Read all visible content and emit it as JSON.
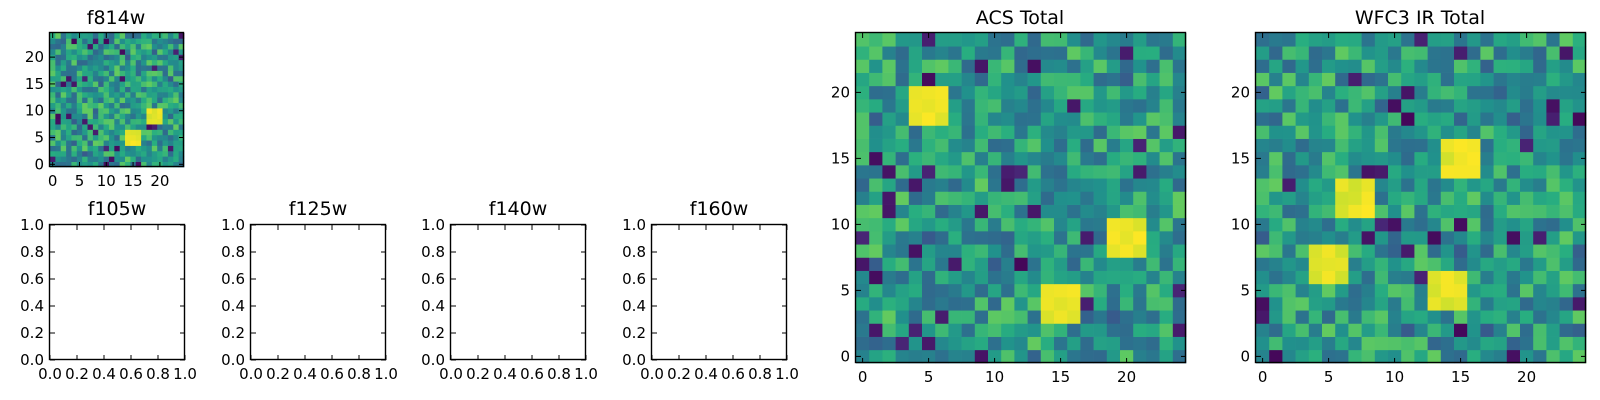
{
  "chart_data": [
    {
      "type": "heatmap",
      "title": "f814w",
      "xlabel": "",
      "ylabel": "",
      "xlim": [
        -0.5,
        24.5
      ],
      "ylim": [
        -0.5,
        24.5
      ],
      "xticks": [
        0,
        5,
        10,
        15,
        20
      ],
      "yticks": [
        0,
        5,
        10,
        15,
        20
      ],
      "xtick_labels": [
        "0",
        "5",
        "10",
        "15",
        "20"
      ],
      "ytick_labels": [
        "0",
        "5",
        "10",
        "15",
        "20"
      ],
      "colormap": "viridis",
      "grid": false,
      "matrix_size": [
        25,
        25
      ],
      "hotspots": [
        {
          "x": 15,
          "y": 5
        },
        {
          "x": 19,
          "y": 9
        }
      ],
      "seed": 11
    },
    {
      "type": "heatmap",
      "title": "f105w",
      "xlim": [
        0.0,
        1.0
      ],
      "ylim": [
        0.0,
        1.0
      ],
      "xticks": [
        0.0,
        0.2,
        0.4,
        0.6,
        0.8,
        1.0
      ],
      "yticks": [
        0.0,
        0.2,
        0.4,
        0.6,
        0.8,
        1.0
      ],
      "xtick_labels": [
        "0.0",
        "0.2",
        "0.4",
        "0.6",
        "0.8",
        "1.0"
      ],
      "ytick_labels": [
        "0.0",
        "0.2",
        "0.4",
        "0.6",
        "0.8",
        "1.0"
      ],
      "grid": false,
      "empty": true
    },
    {
      "type": "heatmap",
      "title": "f125w",
      "xlim": [
        0.0,
        1.0
      ],
      "ylim": [
        0.0,
        1.0
      ],
      "xticks": [
        0.0,
        0.2,
        0.4,
        0.6,
        0.8,
        1.0
      ],
      "yticks": [
        0.0,
        0.2,
        0.4,
        0.6,
        0.8,
        1.0
      ],
      "xtick_labels": [
        "0.0",
        "0.2",
        "0.4",
        "0.6",
        "0.8",
        "1.0"
      ],
      "ytick_labels": [
        "0.0",
        "0.2",
        "0.4",
        "0.6",
        "0.8",
        "1.0"
      ],
      "grid": false,
      "empty": true
    },
    {
      "type": "heatmap",
      "title": "f140w",
      "xlim": [
        0.0,
        1.0
      ],
      "ylim": [
        0.0,
        1.0
      ],
      "xticks": [
        0.0,
        0.2,
        0.4,
        0.6,
        0.8,
        1.0
      ],
      "yticks": [
        0.0,
        0.2,
        0.4,
        0.6,
        0.8,
        1.0
      ],
      "xtick_labels": [
        "0.0",
        "0.2",
        "0.4",
        "0.6",
        "0.8",
        "1.0"
      ],
      "ytick_labels": [
        "0.0",
        "0.2",
        "0.4",
        "0.6",
        "0.8",
        "1.0"
      ],
      "grid": false,
      "empty": true
    },
    {
      "type": "heatmap",
      "title": "f160w",
      "xlim": [
        0.0,
        1.0
      ],
      "ylim": [
        0.0,
        1.0
      ],
      "xticks": [
        0.0,
        0.2,
        0.4,
        0.6,
        0.8,
        1.0
      ],
      "yticks": [
        0.0,
        0.2,
        0.4,
        0.6,
        0.8,
        1.0
      ],
      "xtick_labels": [
        "0.0",
        "0.2",
        "0.4",
        "0.6",
        "0.8",
        "1.0"
      ],
      "ytick_labels": [
        "0.0",
        "0.2",
        "0.4",
        "0.6",
        "0.8",
        "1.0"
      ],
      "grid": false,
      "empty": true
    },
    {
      "type": "heatmap",
      "title": "ACS Total",
      "xlim": [
        -0.5,
        24.5
      ],
      "ylim": [
        -0.5,
        24.5
      ],
      "xticks": [
        0,
        5,
        10,
        15,
        20
      ],
      "yticks": [
        0,
        5,
        10,
        15,
        20
      ],
      "xtick_labels": [
        "0",
        "5",
        "10",
        "15",
        "20"
      ],
      "ytick_labels": [
        "0",
        "5",
        "10",
        "15",
        "20"
      ],
      "colormap": "viridis",
      "grid": false,
      "matrix_size": [
        25,
        25
      ],
      "hotspots": [
        {
          "x": 15,
          "y": 4
        },
        {
          "x": 20,
          "y": 9
        },
        {
          "x": 5,
          "y": 19
        }
      ],
      "seed": 23
    },
    {
      "type": "heatmap",
      "title": "WFC3 IR Total",
      "xlim": [
        -0.5,
        24.5
      ],
      "ylim": [
        -0.5,
        24.5
      ],
      "xticks": [
        0,
        5,
        10,
        15,
        20
      ],
      "yticks": [
        0,
        5,
        10,
        15,
        20
      ],
      "xtick_labels": [
        "0",
        "5",
        "10",
        "15",
        "20"
      ],
      "ytick_labels": [
        "0",
        "5",
        "10",
        "15",
        "20"
      ],
      "colormap": "viridis",
      "grid": false,
      "matrix_size": [
        25,
        25
      ],
      "hotspots": [
        {
          "x": 5,
          "y": 7
        },
        {
          "x": 7,
          "y": 12
        },
        {
          "x": 14,
          "y": 5
        },
        {
          "x": 15,
          "y": 15
        }
      ],
      "seed": 37
    }
  ],
  "colors": {
    "viridis_low": "#440154",
    "viridis_mid": "#21918c",
    "viridis_high": "#fde725",
    "axes": "#000000",
    "background": "#ffffff"
  }
}
